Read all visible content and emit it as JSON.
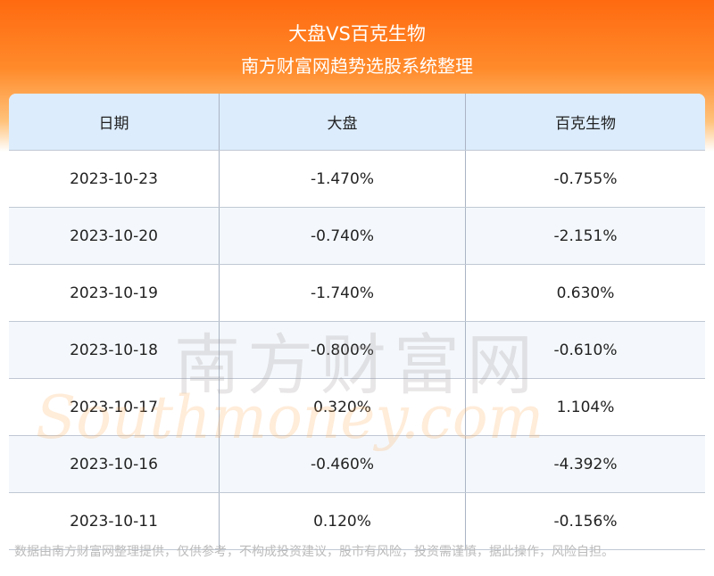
{
  "header": {
    "title": "大盘VS百克生物",
    "subtitle": "南方财富网趋势选股系统整理"
  },
  "table": {
    "columns": [
      "日期",
      "大盘",
      "百克生物"
    ],
    "rows": [
      [
        "2023-10-23",
        "-1.470%",
        "-0.755%"
      ],
      [
        "2023-10-20",
        "-0.740%",
        "-2.151%"
      ],
      [
        "2023-10-19",
        "-1.740%",
        "0.630%"
      ],
      [
        "2023-10-18",
        "-0.800%",
        "-0.610%"
      ],
      [
        "2023-10-17",
        "0.320%",
        "1.104%"
      ],
      [
        "2023-10-16",
        "-0.460%",
        "-4.392%"
      ],
      [
        "2023-10-11",
        "0.120%",
        "-0.156%"
      ]
    ]
  },
  "watermark": {
    "cn": "南方财富网",
    "en": "Southmoney.com"
  },
  "footer": "数据由南方财富网整理提供，仅供参考，不构成投资建议，股市有风险，投资需谨慎，据此操作，风险自担。"
}
